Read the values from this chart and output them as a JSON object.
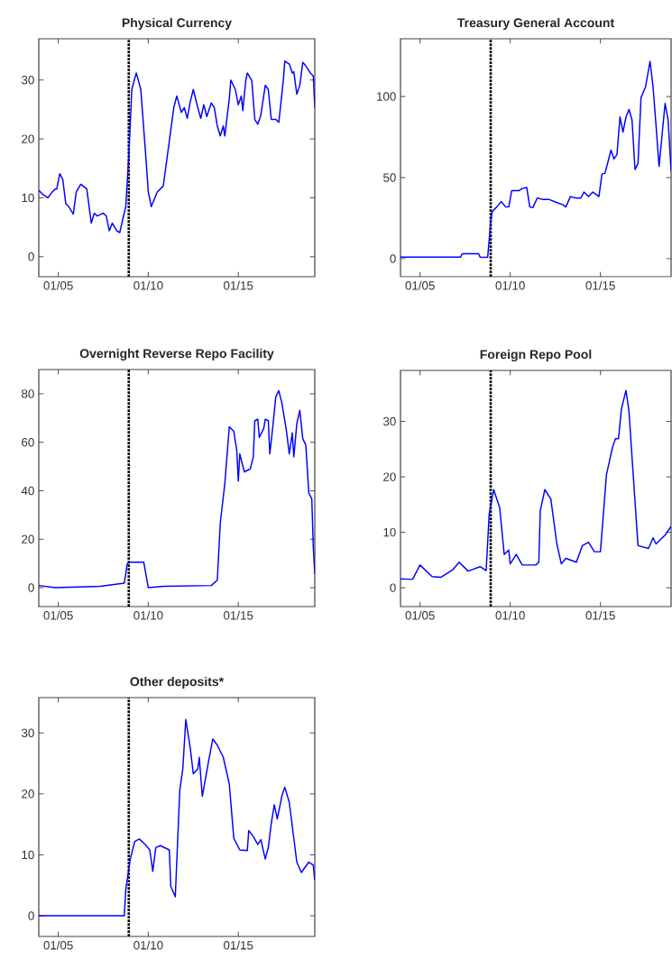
{
  "chart_data": [
    {
      "type": "line",
      "title": "Physical Currency",
      "xlim": [
        "2003-12",
        "2019-04"
      ],
      "ylim": [
        -3.4,
        37
      ],
      "yticks": [
        0,
        10,
        20,
        30
      ],
      "xticks": [
        {
          "value": "2005-01",
          "label": "01/05"
        },
        {
          "value": "2010-01",
          "label": "01/10"
        },
        {
          "value": "2015-01",
          "label": "01/15"
        }
      ],
      "ref_lines": [
        {
          "axis": "x",
          "value": "2008-12",
          "color": "#000000",
          "line_style": "dotted"
        }
      ],
      "x": [
        "2003-12",
        "2004-03",
        "2004-06",
        "2004-09",
        "2004-11",
        "2004-12",
        "2005-02",
        "2005-04",
        "2005-06",
        "2005-08",
        "2005-11",
        "2006-01",
        "2006-04",
        "2006-08",
        "2006-11",
        "2007-01",
        "2007-03",
        "2007-07",
        "2007-09",
        "2007-11",
        "2008-01",
        "2008-04",
        "2008-06",
        "2008-08",
        "2008-10",
        "2008-12",
        "2009-02",
        "2009-05",
        "2009-08",
        "2009-11",
        "2010-01",
        "2010-03",
        "2010-07",
        "2010-11",
        "2011-02",
        "2011-06",
        "2011-08",
        "2011-11",
        "2012-01",
        "2012-03",
        "2012-05",
        "2012-07",
        "2012-10",
        "2012-12",
        "2013-02",
        "2013-04",
        "2013-07",
        "2013-09",
        "2013-11",
        "2014-01",
        "2014-03",
        "2014-04",
        "2014-07",
        "2014-08",
        "2014-11",
        "2015-01",
        "2015-03",
        "2015-04",
        "2015-06",
        "2015-07",
        "2015-10",
        "2015-12",
        "2016-02",
        "2016-04",
        "2016-07",
        "2016-09",
        "2016-11",
        "2017-02",
        "2017-04",
        "2017-07",
        "2017-08",
        "2017-11",
        "2018-01",
        "2018-02",
        "2018-04",
        "2018-06",
        "2018-08",
        "2018-10",
        "2019-01",
        "2019-03",
        "2019-04"
      ],
      "series": [
        {
          "color": "#0000ff",
          "values": [
            11.3,
            10.5,
            10.0,
            11.0,
            11.5,
            11.5,
            14.1,
            13.1,
            9.0,
            8.5,
            7.2,
            11.0,
            12.3,
            11.5,
            5.7,
            7.4,
            6.9,
            7.4,
            6.9,
            4.4,
            5.7,
            4.4,
            4.1,
            6.4,
            8.5,
            17.1,
            28.4,
            31.2,
            28.4,
            18.2,
            11.0,
            8.5,
            11.0,
            12.0,
            17.7,
            25.3,
            27.3,
            24.5,
            25.3,
            23.5,
            26.3,
            28.4,
            25.3,
            23.5,
            25.8,
            23.8,
            26.1,
            25.3,
            22.2,
            20.5,
            22.2,
            20.5,
            26.8,
            30.0,
            28.4,
            25.8,
            27.3,
            24.8,
            29.9,
            31.2,
            29.9,
            23.3,
            22.5,
            24.0,
            29.1,
            28.4,
            23.3,
            23.3,
            22.8,
            29.9,
            33.2,
            32.7,
            31.2,
            31.4,
            27.6,
            29.1,
            33.0,
            32.4,
            31.2,
            30.7,
            25.3
          ]
        }
      ]
    },
    {
      "type": "line",
      "title": "Treasury General Account",
      "xlim": [
        "2003-12",
        "2018-12"
      ],
      "ylim": [
        -11.1,
        135.6
      ],
      "yticks": [
        0,
        50,
        100
      ],
      "xticks": [
        {
          "value": "2005-01",
          "label": "01/05"
        },
        {
          "value": "2010-01",
          "label": "01/10"
        },
        {
          "value": "2015-01",
          "label": "01/15"
        }
      ],
      "ref_lines": [
        {
          "axis": "x",
          "value": "2008-12",
          "color": "#000000",
          "line_style": "dotted"
        }
      ],
      "x": [
        "2003-12",
        "2007-04",
        "2007-05",
        "2008-04",
        "2008-05",
        "2008-10",
        "2008-12",
        "2009-01",
        "2009-04",
        "2009-07",
        "2009-10",
        "2009-12",
        "2010-02",
        "2010-07",
        "2010-09",
        "2010-12",
        "2011-02",
        "2011-04",
        "2011-07",
        "2011-11",
        "2012-03",
        "2012-08",
        "2012-12",
        "2013-02",
        "2013-05",
        "2013-09",
        "2013-12",
        "2014-02",
        "2014-05",
        "2014-08",
        "2014-12",
        "2015-02",
        "2015-04",
        "2015-06",
        "2015-08",
        "2015-10",
        "2015-12",
        "2016-02",
        "2016-04",
        "2016-06",
        "2016-08",
        "2016-10",
        "2016-12",
        "2017-02",
        "2017-04",
        "2017-07",
        "2017-10",
        "2017-12",
        "2018-02",
        "2018-04",
        "2018-06",
        "2018-08",
        "2018-10",
        "2018-12"
      ],
      "series": [
        {
          "color": "#0000ff",
          "values": [
            1,
            1,
            3.1,
            3.1,
            0.9,
            0.9,
            22.6,
            29.1,
            31.9,
            35.2,
            31.9,
            31.9,
            42,
            42,
            43.3,
            43.9,
            31.9,
            31.5,
            37.4,
            36.5,
            36.5,
            34.6,
            33.3,
            31.9,
            38.3,
            37.4,
            37.4,
            41.1,
            38.3,
            41.1,
            38.3,
            52.2,
            52.6,
            59.6,
            67,
            61.5,
            64.3,
            87.4,
            78.1,
            87.4,
            92,
            85.6,
            55,
            58.7,
            99.4,
            105.9,
            121.7,
            105.9,
            81.9,
            56.9,
            76.3,
            95.7,
            85.6,
            54.1
          ]
        }
      ]
    },
    {
      "type": "line",
      "title": "Overnight Reverse Repo Facility",
      "xlim": [
        "2003-12",
        "2019-04"
      ],
      "ylim": [
        -7.8,
        90
      ],
      "yticks": [
        0,
        20,
        40,
        60,
        80
      ],
      "xticks": [
        {
          "value": "2005-01",
          "label": "01/05"
        },
        {
          "value": "2010-01",
          "label": "01/10"
        },
        {
          "value": "2015-01",
          "label": "01/15"
        }
      ],
      "ref_lines": [
        {
          "axis": "x",
          "value": "2008-12",
          "color": "#000000",
          "line_style": "dotted"
        }
      ],
      "x": [
        "2003-12",
        "2004-11",
        "2007-05",
        "2008-09",
        "2008-11",
        "2009-01",
        "2009-10",
        "2010-01",
        "2010-11",
        "2013-07",
        "2013-11",
        "2014-01",
        "2014-04",
        "2014-07",
        "2014-10",
        "2014-12",
        "2015-01",
        "2015-02",
        "2015-05",
        "2015-09",
        "2015-11",
        "2015-12",
        "2016-02",
        "2016-03",
        "2016-06",
        "2016-07",
        "2016-09",
        "2016-10",
        "2016-12",
        "2017-02",
        "2017-04",
        "2017-06",
        "2017-09",
        "2017-11",
        "2018-01",
        "2018-02",
        "2018-04",
        "2018-06",
        "2018-08",
        "2018-10",
        "2018-12",
        "2019-02",
        "2019-03",
        "2019-04"
      ],
      "series": [
        {
          "color": "#0000ff",
          "values": [
            0.9,
            0,
            0.6,
            1.9,
            9.9,
            10.5,
            10.5,
            0,
            0.6,
            0.9,
            3.1,
            26.7,
            42.8,
            66.4,
            64.5,
            56.5,
            44,
            55.2,
            47.8,
            49,
            54,
            68.9,
            69.5,
            62,
            65.8,
            69.5,
            68.9,
            55.2,
            66.4,
            78.8,
            81.3,
            76.3,
            65.1,
            55.2,
            63.9,
            54,
            67.6,
            73.2,
            61.4,
            58.9,
            39.1,
            36.6,
            16.7,
            5.6
          ]
        }
      ]
    },
    {
      "type": "line",
      "title": "Foreign Repo Pool",
      "xlim": [
        "2003-12",
        "2018-12"
      ],
      "ylim": [
        -3.4,
        39.2
      ],
      "yticks": [
        0,
        10,
        20,
        30
      ],
      "xticks": [
        {
          "value": "2005-01",
          "label": "01/05"
        },
        {
          "value": "2010-01",
          "label": "01/10"
        },
        {
          "value": "2015-01",
          "label": "01/15"
        }
      ],
      "ref_lines": [
        {
          "axis": "x",
          "value": "2008-12",
          "color": "#000000",
          "line_style": "dotted"
        }
      ],
      "x": [
        "2003-12",
        "2004-08",
        "2005-01",
        "2005-09",
        "2006-03",
        "2006-11",
        "2007-03",
        "2007-09",
        "2008-05",
        "2008-09",
        "2008-11",
        "2009-02",
        "2009-06",
        "2009-09",
        "2009-12",
        "2010-01",
        "2010-05",
        "2010-09",
        "2011-06",
        "2011-08",
        "2011-09",
        "2011-12",
        "2012-04",
        "2012-08",
        "2012-11",
        "2013-02",
        "2013-09",
        "2014-01",
        "2014-05",
        "2014-09",
        "2015-01",
        "2015-05",
        "2015-09",
        "2015-11",
        "2016-01",
        "2016-03",
        "2016-06",
        "2016-08",
        "2016-10",
        "2017-02",
        "2017-09",
        "2017-12",
        "2018-02",
        "2018-05",
        "2018-08",
        "2018-12"
      ],
      "series": [
        {
          "color": "#0000ff",
          "values": [
            1.6,
            1.5,
            4.1,
            2.0,
            1.9,
            3.3,
            4.6,
            3.0,
            3.8,
            3.1,
            13.3,
            17.7,
            14.4,
            6.0,
            6.8,
            4.3,
            6.0,
            4.1,
            4.1,
            4.6,
            13.9,
            17.7,
            16.0,
            7.9,
            4.3,
            5.3,
            4.6,
            7.6,
            8.2,
            6.5,
            6.5,
            20.4,
            25.3,
            26.9,
            26.9,
            32.3,
            35.6,
            31.8,
            23.6,
            7.6,
            7.1,
            9.0,
            7.9,
            8.7,
            9.5,
            11.1
          ]
        }
      ]
    },
    {
      "type": "line",
      "title": "Other deposits*",
      "xlim": [
        "2003-12",
        "2019-04"
      ],
      "ylim": [
        -3.4,
        35.8
      ],
      "yticks": [
        0,
        10,
        20,
        30
      ],
      "xticks": [
        {
          "value": "2005-01",
          "label": "01/05"
        },
        {
          "value": "2010-01",
          "label": "01/10"
        },
        {
          "value": "2015-01",
          "label": "01/15"
        }
      ],
      "ref_lines": [
        {
          "axis": "x",
          "value": "2008-12",
          "color": "#000000",
          "line_style": "dotted"
        }
      ],
      "x": [
        "2003-12",
        "2008-09",
        "2008-10",
        "2009-01",
        "2009-04",
        "2009-07",
        "2009-11",
        "2010-02",
        "2010-04",
        "2010-06",
        "2010-09",
        "2011-03",
        "2011-04",
        "2011-07",
        "2011-10",
        "2011-12",
        "2012-02",
        "2012-05",
        "2012-07",
        "2012-10",
        "2012-11",
        "2013-01",
        "2013-05",
        "2013-08",
        "2013-11",
        "2014-03",
        "2014-07",
        "2014-10",
        "2015-02",
        "2015-07",
        "2015-08",
        "2015-11",
        "2016-02",
        "2016-04",
        "2016-07",
        "2016-09",
        "2016-11",
        "2017-01",
        "2017-03",
        "2017-06",
        "2017-08",
        "2017-11",
        "2018-04",
        "2018-07",
        "2018-12",
        "2019-03",
        "2019-04"
      ],
      "series": [
        {
          "color": "#0000ff",
          "values": [
            0,
            0,
            4.3,
            9.3,
            12.2,
            12.6,
            11.7,
            10.8,
            7.3,
            11.2,
            11.5,
            10.8,
            4.8,
            3.1,
            20.6,
            24.1,
            32.2,
            27.5,
            23.3,
            24.1,
            26,
            19.6,
            25.1,
            29,
            28,
            26,
            21.6,
            12.7,
            10.8,
            10.7,
            14,
            13,
            11.7,
            12.5,
            9.3,
            11.2,
            15.2,
            18.2,
            15.9,
            19.6,
            21.1,
            18.6,
            8.8,
            7.1,
            8.8,
            8.3,
            5.8
          ]
        }
      ]
    }
  ]
}
